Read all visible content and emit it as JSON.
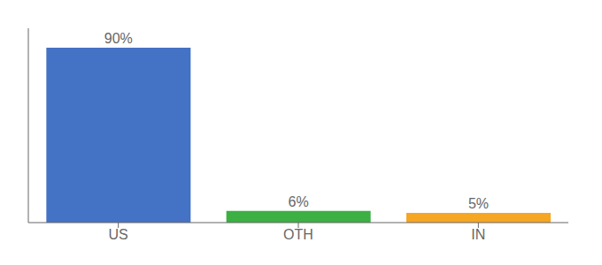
{
  "chart_data": {
    "type": "bar",
    "categories": [
      "US",
      "OTH",
      "IN"
    ],
    "values": [
      90,
      6,
      5
    ],
    "value_labels": [
      "90%",
      "6%",
      "5%"
    ],
    "colors": [
      "#4472c4",
      "#3cb043",
      "#f5a623"
    ],
    "ylim": [
      0,
      100
    ],
    "data_labels": true,
    "tick_labels": "x",
    "grid": false
  }
}
